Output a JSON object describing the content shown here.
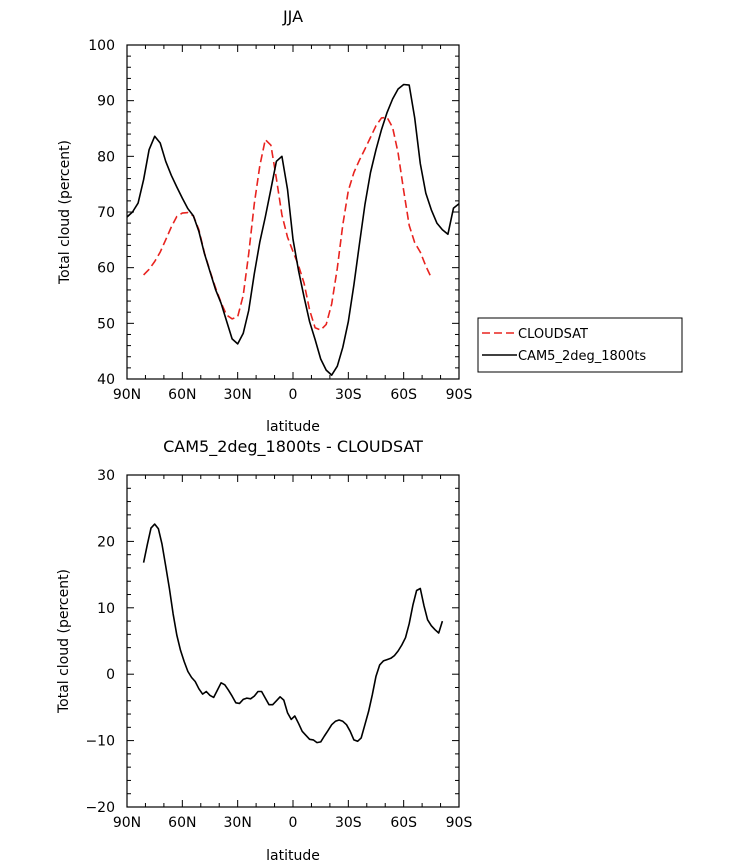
{
  "chart_data": [
    {
      "type": "line",
      "title": "JJA",
      "xlabel": "latitude",
      "ylabel": "Total cloud (percent)",
      "ylim": [
        40,
        100
      ],
      "xlim": [
        90,
        -90
      ],
      "xticks": [
        {
          "value": 90,
          "label": "90N"
        },
        {
          "value": 60,
          "label": "60N"
        },
        {
          "value": 30,
          "label": "30N"
        },
        {
          "value": 0,
          "label": "0"
        },
        {
          "value": -30,
          "label": "30S"
        },
        {
          "value": -60,
          "label": "60S"
        },
        {
          "value": -90,
          "label": "90S"
        }
      ],
      "yticks": [
        {
          "value": 40,
          "label": "40"
        },
        {
          "value": 50,
          "label": "50"
        },
        {
          "value": 60,
          "label": "60"
        },
        {
          "value": 70,
          "label": "70"
        },
        {
          "value": 80,
          "label": "80"
        },
        {
          "value": 90,
          "label": "90"
        },
        {
          "value": 100,
          "label": "100"
        }
      ],
      "legend": {
        "placement": "right",
        "entries": [
          {
            "label": "CLOUDSAT",
            "color": "#e8231f",
            "dash": true
          },
          {
            "label": "CAM5_2deg_1800ts",
            "color": "#000000",
            "dash": false
          }
        ]
      },
      "series": [
        {
          "name": "CLOUDSAT",
          "color": "#e8231f",
          "dash": true,
          "x": [
            81,
            78,
            75,
            72,
            69,
            66,
            63,
            60,
            57,
            54,
            51,
            48,
            45,
            42,
            39,
            36,
            33,
            30,
            27,
            24,
            21,
            18,
            15,
            12,
            9,
            6,
            3,
            0,
            -3,
            -6,
            -9,
            -12,
            -15,
            -18,
            -21,
            -24,
            -27,
            -30,
            -33,
            -36,
            -39,
            -42,
            -45,
            -48,
            -51,
            -54,
            -57,
            -60,
            -63,
            -66,
            -69,
            -72,
            -75,
            -78,
            -81
          ],
          "y": [
            58.7,
            59.7,
            61.1,
            62.8,
            65.0,
            67.3,
            69.2,
            69.8,
            69.9,
            69.3,
            66.8,
            62.6,
            59.4,
            56.4,
            53.7,
            51.5,
            50.8,
            51.2,
            55.0,
            62.5,
            71.5,
            78.3,
            83.0,
            82.0,
            76.0,
            69.5,
            65.5,
            62.9,
            60.4,
            57.2,
            52.4,
            49.2,
            48.8,
            49.8,
            53.5,
            59.9,
            67.7,
            73.8,
            77.1,
            79.3,
            81.3,
            83.4,
            85.5,
            86.9,
            87.0,
            85.2,
            80.6,
            73.8,
            67.6,
            64.5,
            62.8,
            60.3,
            58.2,
            null,
            null
          ]
        },
        {
          "name": "CAM5_2deg_1800ts",
          "color": "#000000",
          "dash": false,
          "x": [
            90,
            87,
            84,
            81,
            78,
            75,
            72,
            69,
            66,
            63,
            60,
            57,
            54,
            51,
            48,
            45,
            42,
            39,
            36,
            33,
            30,
            27,
            24,
            21,
            18,
            15,
            12,
            9,
            6,
            3,
            0,
            -3,
            -6,
            -9,
            -12,
            -15,
            -18,
            -21,
            -24,
            -27,
            -30,
            -33,
            -36,
            -39,
            -42,
            -45,
            -48,
            -51,
            -54,
            -57,
            -60,
            -63,
            -66,
            -69,
            -72,
            -75,
            -78,
            -81,
            -84,
            -87,
            -90
          ],
          "y": [
            69.1,
            70.0,
            71.6,
            75.8,
            81.2,
            83.6,
            82.4,
            79.1,
            76.6,
            74.5,
            72.5,
            70.6,
            69.3,
            66.5,
            62.5,
            59.3,
            56.1,
            53.6,
            50.4,
            47.2,
            46.3,
            48.2,
            52.3,
            58.9,
            64.6,
            69.1,
            74.1,
            79.1,
            80.0,
            74.1,
            65.1,
            59.5,
            54.7,
            50.3,
            47.1,
            43.6,
            41.6,
            40.7,
            42.3,
            45.7,
            50.3,
            56.9,
            64.2,
            71.3,
            77.1,
            81.2,
            84.8,
            87.9,
            90.3,
            92.1,
            92.9,
            92.8,
            86.9,
            78.7,
            73.4,
            70.4,
            68.0,
            66.8,
            66.0,
            70.7,
            71.5
          ]
        }
      ]
    },
    {
      "type": "line",
      "title": "CAM5_2deg_1800ts - CLOUDSAT",
      "xlabel": "latitude",
      "ylabel": "Total cloud (percent)",
      "ylim": [
        -20,
        30
      ],
      "xlim": [
        90,
        -90
      ],
      "xticks": [
        {
          "value": 90,
          "label": "90N"
        },
        {
          "value": 60,
          "label": "60N"
        },
        {
          "value": 30,
          "label": "30N"
        },
        {
          "value": 0,
          "label": "0"
        },
        {
          "value": -30,
          "label": "30S"
        },
        {
          "value": -60,
          "label": "60S"
        },
        {
          "value": -90,
          "label": "90S"
        }
      ],
      "yticks": [
        {
          "value": -20,
          "label": "−20"
        },
        {
          "value": -10,
          "label": "−10"
        },
        {
          "value": 0,
          "label": "0"
        },
        {
          "value": 10,
          "label": "10"
        },
        {
          "value": 20,
          "label": "20"
        },
        {
          "value": 30,
          "label": "30"
        }
      ],
      "series": [
        {
          "name": "",
          "color": "#000000",
          "dash": false,
          "x": [
            81,
            79,
            77,
            75,
            73,
            71,
            69,
            67,
            65,
            63,
            61,
            59,
            57,
            55,
            53,
            51,
            49,
            47,
            45,
            43,
            41,
            39,
            37,
            35,
            33,
            31,
            29,
            27,
            25,
            23,
            21,
            19,
            17,
            15,
            13,
            11,
            9,
            7,
            5,
            3,
            1,
            -1,
            -3,
            -5,
            -7,
            -9,
            -11,
            -13,
            -15,
            -17,
            -19,
            -21,
            -23,
            -25,
            -27,
            -29,
            -31,
            -33,
            -35,
            -37,
            -39,
            -41,
            -43,
            -45,
            -47,
            -49,
            -51,
            -53,
            -55,
            -57,
            -59,
            -61,
            -63,
            -65,
            -67,
            -69,
            -71,
            -73,
            -75,
            -77,
            -79,
            -81
          ],
          "y": [
            16.8,
            19.5,
            22.0,
            22.6,
            21.9,
            19.6,
            16.3,
            12.9,
            9.1,
            5.9,
            3.6,
            1.9,
            0.4,
            -0.5,
            -1.1,
            -2.2,
            -3.0,
            -2.6,
            -3.2,
            -3.5,
            -2.4,
            -1.3,
            -1.6,
            -2.4,
            -3.3,
            -4.3,
            -4.4,
            -3.8,
            -3.6,
            -3.7,
            -3.3,
            -2.6,
            -2.6,
            -3.6,
            -4.6,
            -4.6,
            -4.0,
            -3.4,
            -3.9,
            -5.8,
            -6.8,
            -6.3,
            -7.4,
            -8.6,
            -9.2,
            -9.8,
            -9.9,
            -10.3,
            -10.2,
            -9.3,
            -8.5,
            -7.6,
            -7.1,
            -6.9,
            -7.1,
            -7.6,
            -8.6,
            -9.9,
            -10.1,
            -9.6,
            -7.6,
            -5.6,
            -3.1,
            -0.3,
            1.4,
            2.0,
            2.2,
            2.4,
            2.8,
            3.5,
            4.4,
            5.5,
            7.6,
            10.4,
            12.6,
            12.9,
            10.3,
            8.2,
            7.3,
            6.7,
            6.2,
            8.0
          ]
        }
      ]
    }
  ]
}
